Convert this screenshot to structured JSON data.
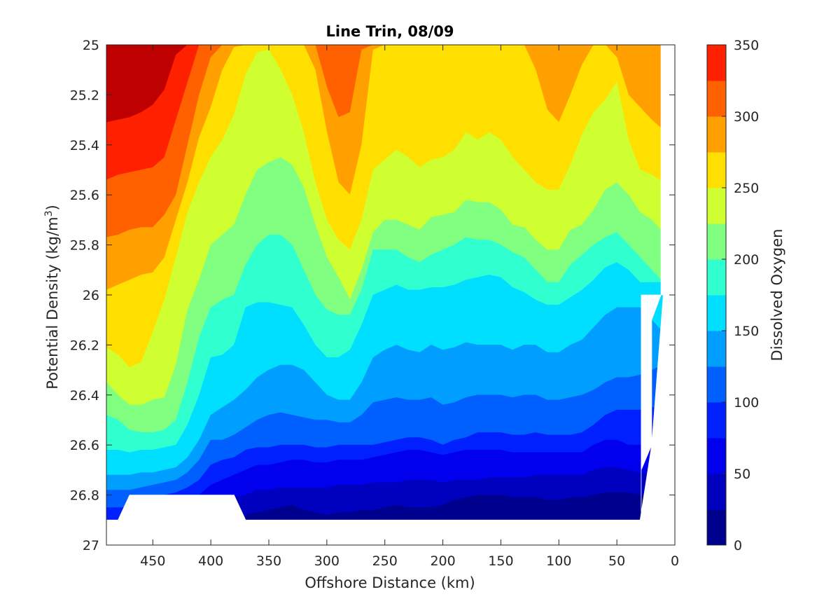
{
  "chart_data": {
    "type": "filled-contour",
    "title": "Line Trin, 08/09",
    "xlabel": "Offshore Distance (km)",
    "ylabel": "Potential Density (kg/m",
    "ylabel_sup": "3",
    "ylabel_close": ")",
    "xlim": [
      490,
      0
    ],
    "x_reversed": true,
    "ylim": [
      25,
      27
    ],
    "y_reversed": true,
    "grid": false,
    "x_ticks": [
      450,
      400,
      350,
      300,
      250,
      200,
      150,
      100,
      50,
      0
    ],
    "x_tick_labels": [
      "450",
      "400",
      "350",
      "300",
      "250",
      "200",
      "150",
      "100",
      "50",
      "0"
    ],
    "y_ticks": [
      25,
      25.2,
      25.4,
      25.6,
      25.8,
      26,
      26.2,
      26.4,
      26.6,
      26.8,
      27
    ],
    "y_tick_labels": [
      "25",
      "25.2",
      "25.4",
      "25.6",
      "25.8",
      "26",
      "26.2",
      "26.4",
      "26.6",
      "26.8",
      "27"
    ],
    "colorbar": {
      "label": "Dissolved Oxygen",
      "placement": "right",
      "limits": [
        0,
        350
      ],
      "ticks": [
        0,
        50,
        100,
        150,
        200,
        250,
        300,
        350
      ],
      "tick_labels": [
        "0",
        "50",
        "100",
        "150",
        "200",
        "250",
        "300",
        "350"
      ],
      "levels": [
        0,
        25,
        50,
        75,
        100,
        125,
        150,
        175,
        200,
        225,
        250,
        275,
        300,
        325,
        350
      ],
      "colors": [
        "#00008f",
        "#0000bf",
        "#0000ef",
        "#0020ff",
        "#0060ff",
        "#009fff",
        "#00dfff",
        "#30ffcf",
        "#80ff80",
        "#cfff30",
        "#ffdf00",
        "#ff9f00",
        "#ff6000",
        "#ff2000",
        "#bf0000"
      ]
    },
    "data_x": [
      490,
      480,
      470,
      460,
      450,
      440,
      430,
      420,
      410,
      400,
      390,
      380,
      370,
      360,
      350,
      340,
      330,
      320,
      310,
      300,
      290,
      280,
      270,
      260,
      250,
      240,
      230,
      220,
      210,
      200,
      190,
      180,
      170,
      160,
      150,
      140,
      130,
      120,
      110,
      100,
      90,
      80,
      70,
      60,
      50,
      40,
      30,
      20,
      10
    ],
    "isopycnal_level_bounds": [
      {
        "level": 325,
        "sigma": [
          25.31,
          25.3,
          25.29,
          25.27,
          25.24,
          25.18,
          25.04,
          25,
          25,
          25,
          25,
          25,
          25,
          25,
          25,
          25,
          25,
          25,
          25,
          25,
          25,
          25,
          25,
          25,
          25,
          25,
          25,
          25,
          25,
          25,
          25,
          25,
          25,
          25,
          25,
          25,
          25,
          25,
          25,
          25,
          25,
          25,
          25,
          25,
          25,
          25,
          25,
          25,
          25
        ]
      },
      {
        "level": 300,
        "sigma": [
          25.54,
          25.52,
          25.51,
          25.5,
          25.49,
          25.45,
          25.3,
          25.15,
          25,
          25,
          25,
          25,
          25,
          25,
          25,
          25,
          25,
          25,
          25,
          25,
          25,
          25,
          25,
          25,
          25,
          25,
          25,
          25,
          25,
          25,
          25,
          25,
          25,
          25,
          25,
          25,
          25,
          25,
          25,
          25,
          25,
          25,
          25,
          25,
          25,
          25,
          25,
          25,
          25
        ]
      },
      {
        "level": 275,
        "sigma": [
          25.77,
          25.76,
          25.74,
          25.73,
          25.73,
          25.68,
          25.6,
          25.4,
          25.2,
          25.05,
          25,
          25,
          25,
          25,
          25,
          25,
          25,
          25,
          25,
          25.17,
          25.29,
          25.27,
          25.02,
          25,
          25,
          25,
          25,
          25,
          25,
          25,
          25,
          25,
          25,
          25,
          25,
          25,
          25,
          25,
          25,
          25,
          25,
          25,
          25,
          25,
          25,
          25,
          25,
          25,
          25
        ]
      },
      {
        "level": 250,
        "sigma": [
          25.98,
          25.96,
          25.94,
          25.92,
          25.91,
          25.85,
          25.7,
          25.55,
          25.37,
          25.25,
          25.1,
          25.01,
          25,
          25,
          25,
          25,
          25,
          25,
          25.1,
          25.35,
          25.55,
          25.6,
          25.4,
          25.02,
          25,
          25,
          25,
          25,
          25,
          25,
          25,
          25,
          25,
          25,
          25,
          25,
          25,
          25.1,
          25.26,
          25.31,
          25.2,
          25.08,
          25,
          25,
          25.05,
          25.2,
          25.25,
          25.3,
          25.34
        ]
      },
      {
        "level": 225,
        "sigma": [
          26.21,
          26.24,
          26.29,
          26.27,
          26.15,
          26.02,
          25.85,
          25.67,
          25.55,
          25.45,
          25.38,
          25.28,
          25.12,
          25.03,
          25.02,
          25.1,
          25.2,
          25.35,
          25.55,
          25.7,
          25.78,
          25.82,
          25.7,
          25.5,
          25.46,
          25.42,
          25.45,
          25.49,
          25.46,
          25.45,
          25.42,
          25.35,
          25.38,
          25.35,
          25.38,
          25.45,
          25.5,
          25.55,
          25.58,
          25.58,
          25.48,
          25.36,
          25.27,
          25.22,
          25.15,
          25.38,
          25.5,
          25.52,
          25.55
        ]
      },
      {
        "level": 200,
        "sigma": [
          26.35,
          26.4,
          26.44,
          26.44,
          26.42,
          26.41,
          26.28,
          26.06,
          25.94,
          25.8,
          25.76,
          25.72,
          25.6,
          25.5,
          25.47,
          25.45,
          25.48,
          25.57,
          25.72,
          25.85,
          25.93,
          26.02,
          25.9,
          25.75,
          25.7,
          25.7,
          25.72,
          25.74,
          25.69,
          25.68,
          25.67,
          25.62,
          25.63,
          25.63,
          25.66,
          25.72,
          25.73,
          25.78,
          25.82,
          25.82,
          25.74,
          25.72,
          25.66,
          25.58,
          25.55,
          25.6,
          25.67,
          25.7,
          25.75
        ]
      },
      {
        "level": 175,
        "sigma": [
          26.48,
          26.5,
          26.54,
          26.55,
          26.55,
          26.54,
          26.5,
          26.35,
          26.17,
          26.05,
          26.02,
          26.0,
          25.88,
          25.8,
          25.76,
          25.76,
          25.8,
          25.9,
          26.0,
          26.06,
          26.08,
          26.08,
          25.98,
          25.82,
          25.82,
          25.82,
          25.85,
          25.87,
          25.84,
          25.82,
          25.8,
          25.77,
          25.78,
          25.78,
          25.8,
          25.83,
          25.85,
          25.9,
          25.95,
          25.95,
          25.88,
          25.84,
          25.8,
          25.77,
          25.75,
          25.8,
          25.85,
          25.9,
          25.95
        ]
      },
      {
        "level": 150,
        "sigma": [
          26.62,
          26.62,
          26.63,
          26.62,
          26.62,
          26.61,
          26.6,
          26.52,
          26.4,
          26.25,
          26.24,
          26.2,
          26.05,
          26.03,
          26.03,
          26.04,
          26.05,
          26.12,
          26.2,
          26.25,
          26.25,
          26.22,
          26.12,
          26.0,
          25.98,
          25.96,
          25.98,
          25.98,
          25.97,
          25.97,
          25.96,
          25.94,
          25.93,
          25.92,
          25.93,
          25.97,
          25.99,
          26.02,
          26.04,
          26.04,
          26.01,
          25.98,
          25.94,
          25.89,
          25.87,
          25.9,
          25.95,
          25.95,
          25.95
        ]
      },
      {
        "level": 125,
        "sigma": [
          26.72,
          26.72,
          26.72,
          26.71,
          26.71,
          26.7,
          26.69,
          26.65,
          26.58,
          26.48,
          26.45,
          26.42,
          26.38,
          26.33,
          26.3,
          26.28,
          26.28,
          26.3,
          26.35,
          26.4,
          26.42,
          26.42,
          26.35,
          26.25,
          26.22,
          26.2,
          26.22,
          26.23,
          26.2,
          26.22,
          26.21,
          26.19,
          26.2,
          26.2,
          26.2,
          26.22,
          26.2,
          26.2,
          26.23,
          26.23,
          26.2,
          26.18,
          26.13,
          26.08,
          26.05,
          26.05,
          26.05,
          26.1,
          26.15
        ]
      },
      {
        "level": 100,
        "sigma": [
          26.78,
          26.78,
          26.78,
          26.77,
          26.76,
          26.75,
          26.74,
          26.71,
          26.66,
          26.58,
          26.58,
          26.56,
          26.53,
          26.5,
          26.48,
          26.47,
          26.48,
          26.49,
          26.5,
          26.5,
          26.51,
          26.51,
          26.48,
          26.43,
          26.42,
          26.41,
          26.42,
          26.42,
          26.41,
          26.44,
          26.43,
          26.41,
          26.4,
          26.4,
          26.4,
          26.41,
          26.4,
          26.4,
          26.42,
          26.42,
          26.41,
          26.4,
          26.38,
          26.35,
          26.33,
          26.33,
          26.32,
          26.3,
          26.28
        ]
      },
      {
        "level": 75,
        "sigma": [
          26.85,
          26.85,
          26.85,
          26.84,
          26.82,
          26.8,
          26.79,
          26.77,
          26.74,
          26.68,
          26.66,
          26.65,
          26.62,
          26.61,
          26.61,
          26.6,
          26.6,
          26.6,
          26.61,
          26.61,
          26.6,
          26.6,
          26.6,
          26.6,
          26.59,
          26.58,
          26.57,
          26.57,
          26.58,
          26.6,
          26.58,
          26.57,
          26.55,
          26.55,
          26.55,
          26.56,
          26.56,
          26.55,
          26.56,
          26.56,
          26.56,
          26.55,
          26.52,
          26.48,
          26.46,
          26.46,
          26.46,
          26.45,
          26.45
        ]
      },
      {
        "level": 50,
        "sigma": [
          26.9,
          26.9,
          26.9,
          26.9,
          26.88,
          26.87,
          26.85,
          26.83,
          26.8,
          26.76,
          26.74,
          26.72,
          26.7,
          26.68,
          26.68,
          26.67,
          26.66,
          26.66,
          26.67,
          26.67,
          26.66,
          26.66,
          26.66,
          26.65,
          26.64,
          26.63,
          26.62,
          26.62,
          26.63,
          26.64,
          26.63,
          26.62,
          26.62,
          26.62,
          26.62,
          26.63,
          26.63,
          26.63,
          26.63,
          26.63,
          26.63,
          26.63,
          26.6,
          26.58,
          26.58,
          26.6,
          26.6,
          26.6,
          26.6
        ]
      },
      {
        "level": 25,
        "sigma": [
          26.95,
          26.95,
          26.95,
          26.95,
          26.95,
          26.94,
          26.92,
          26.9,
          26.88,
          26.85,
          26.83,
          26.81,
          26.8,
          26.78,
          26.78,
          26.77,
          26.77,
          26.77,
          26.77,
          26.77,
          26.76,
          26.76,
          26.76,
          26.75,
          26.75,
          26.75,
          26.74,
          26.74,
          26.74,
          26.75,
          26.74,
          26.74,
          26.74,
          26.73,
          26.73,
          26.73,
          26.73,
          26.72,
          26.72,
          26.72,
          26.72,
          26.72,
          26.7,
          26.69,
          26.69,
          26.7,
          26.71,
          26.72,
          26.72
        ]
      },
      {
        "level": 0,
        "sigma": [
          27,
          27,
          27,
          27,
          27,
          27,
          27,
          27,
          27,
          27,
          27,
          27,
          26.88,
          26.87,
          26.86,
          26.85,
          26.84,
          26.86,
          26.87,
          26.88,
          26.87,
          26.87,
          26.86,
          26.86,
          26.85,
          26.84,
          26.85,
          26.85,
          26.85,
          26.84,
          26.82,
          26.81,
          26.8,
          26.8,
          26.8,
          26.81,
          26.81,
          26.81,
          26.82,
          26.82,
          26.81,
          26.81,
          26.8,
          26.79,
          26.79,
          26.79,
          26.8,
          26.8,
          26.8
        ]
      }
    ],
    "data_bottom_sigma": [
      26.9,
      26.9,
      26.8,
      26.8,
      26.8,
      26.8,
      26.8,
      26.8,
      26.8,
      26.8,
      26.8,
      26.8,
      26.9,
      26.9,
      26.9,
      26.9,
      26.9,
      26.9,
      26.9,
      26.9,
      26.9,
      26.9,
      26.9,
      26.9,
      26.9,
      26.9,
      26.9,
      26.9,
      26.9,
      26.9,
      26.9,
      26.9,
      26.9,
      26.9,
      26.9,
      26.9,
      26.9,
      26.9,
      26.9,
      26.9,
      26.9,
      26.9,
      26.9,
      26.9,
      26.9,
      26.9,
      26.9,
      26.6,
      26.0
    ],
    "data_right_edge": [
      {
        "x": 12,
        "sigma": 25.0
      },
      {
        "x": 12,
        "sigma": 26.0
      },
      {
        "x": 20,
        "sigma": 26.1
      },
      {
        "x": 20,
        "sigma": 26.6
      },
      {
        "x": 29,
        "sigma": 26.7
      },
      {
        "x": 29,
        "sigma": 26.9
      }
    ]
  }
}
